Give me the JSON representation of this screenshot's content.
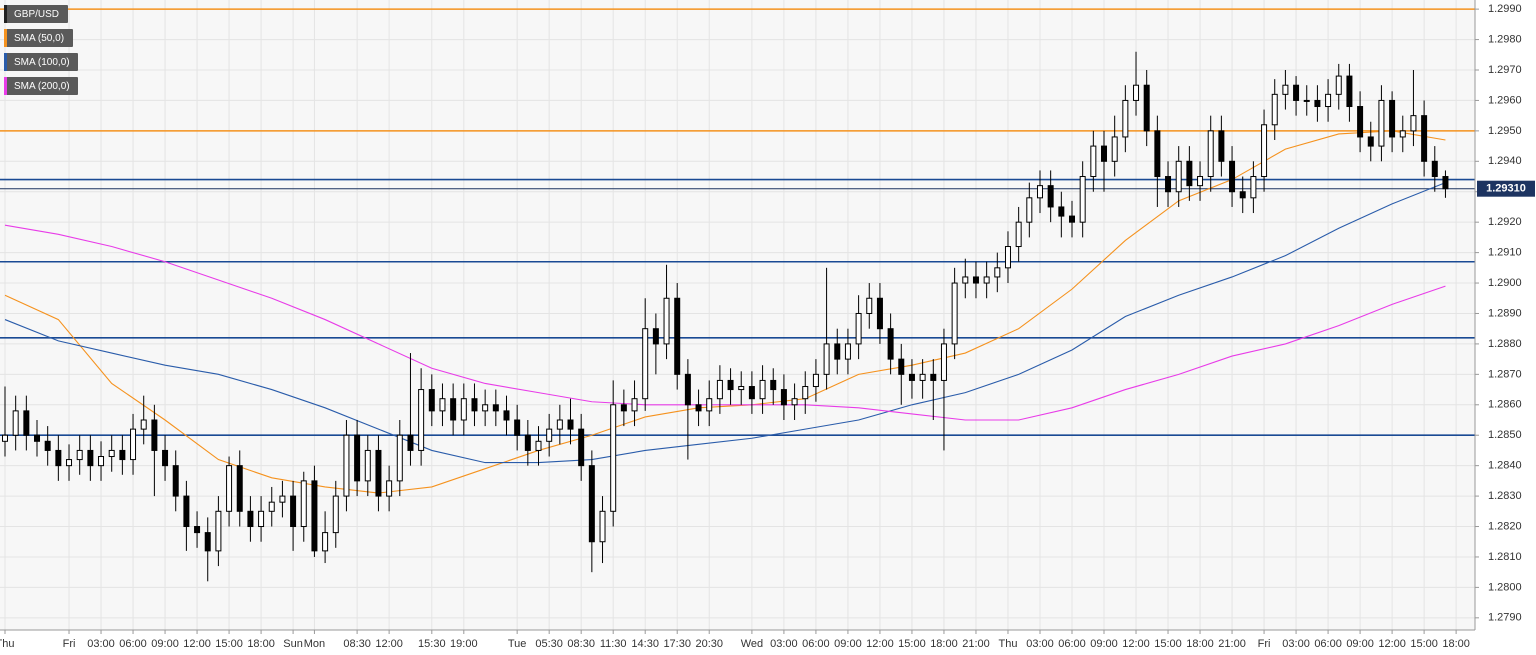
{
  "chart_data": {
    "type": "candlestick",
    "symbol": "GBP/USD",
    "categories": [
      "Thu",
      null,
      null,
      null,
      null,
      null,
      "Fri",
      null,
      null,
      "03:00",
      null,
      null,
      "06:00",
      null,
      null,
      "09:00",
      null,
      null,
      "12:00",
      null,
      null,
      "15:00",
      null,
      null,
      "18:00",
      null,
      null,
      "Sun",
      null,
      "Mon",
      null,
      null,
      null,
      "08:30",
      null,
      null,
      "12:00",
      null,
      null,
      null,
      "15:30",
      null,
      null,
      "19:00",
      null,
      null,
      null,
      null,
      "Tue",
      null,
      null,
      "05:30",
      null,
      null,
      "08:30",
      null,
      null,
      "11:30",
      null,
      null,
      "14:30",
      null,
      null,
      "17:30",
      null,
      null,
      "20:30",
      null,
      null,
      null,
      "Wed",
      null,
      null,
      "03:00",
      null,
      null,
      "06:00",
      null,
      null,
      "09:00",
      null,
      null,
      "12:00",
      null,
      null,
      "15:00",
      null,
      null,
      "18:00",
      null,
      null,
      "21:00",
      null,
      null,
      "Thu",
      null,
      null,
      "03:00",
      null,
      null,
      "06:00",
      null,
      null,
      "09:00",
      null,
      null,
      "12:00",
      null,
      null,
      "15:00",
      null,
      null,
      "18:00",
      null,
      null,
      "21:00",
      null,
      null,
      "Fri",
      null,
      null,
      "03:00",
      null,
      null,
      "06:00",
      null,
      null,
      "09:00",
      null,
      null,
      "12:00",
      null,
      null,
      "15:00",
      null,
      null,
      "18:00"
    ],
    "open": [
      1.2848,
      1.285,
      1.2858,
      1.285,
      1.2848,
      1.2845,
      1.284,
      1.2842,
      1.2845,
      1.284,
      1.2843,
      1.2845,
      1.2842,
      1.2852,
      1.2855,
      1.2845,
      1.284,
      1.283,
      1.282,
      1.2818,
      1.2812,
      1.2825,
      1.284,
      1.2825,
      1.282,
      1.2825,
      1.2828,
      1.283,
      1.282,
      1.2835,
      1.2812,
      1.2818,
      1.283,
      1.285,
      1.2835,
      1.2845,
      1.283,
      1.2835,
      1.285,
      1.2845,
      1.2865,
      1.2858,
      1.2862,
      1.2855,
      1.2862,
      1.2858,
      1.286,
      1.2858,
      1.2855,
      1.285,
      1.2845,
      1.2848,
      1.2852,
      1.2855,
      1.2852,
      1.284,
      1.2815,
      1.2825,
      1.286,
      1.2858,
      1.2862,
      1.2885,
      1.288,
      1.2895,
      1.287,
      1.286,
      1.2858,
      1.2862,
      1.2868,
      1.2865,
      1.2866,
      1.2862,
      1.2868,
      1.2865,
      1.286,
      1.2862,
      1.2866,
      1.287,
      1.288,
      1.2875,
      1.288,
      1.289,
      1.2895,
      1.2885,
      1.2875,
      1.287,
      1.2868,
      1.287,
      1.2868,
      1.288,
      1.29,
      1.2902,
      1.29,
      1.2902,
      1.2905,
      1.2912,
      1.292,
      1.2928,
      1.2932,
      1.2925,
      1.2922,
      1.292,
      1.2935,
      1.2945,
      1.294,
      1.2948,
      1.296,
      1.2965,
      1.295,
      1.2935,
      1.293,
      1.294,
      1.2932,
      1.2935,
      1.295,
      1.294,
      1.293,
      1.2928,
      1.2935,
      1.2952,
      1.2962,
      1.2965,
      1.296,
      1.296,
      1.2958,
      1.2962,
      1.2968,
      1.2958,
      1.2948,
      1.2945,
      1.296,
      1.2948,
      1.295,
      1.2955,
      1.294,
      1.2935,
      null
    ],
    "high": [
      1.2866,
      1.2863,
      1.2863,
      1.2855,
      1.2853,
      1.285,
      1.2847,
      1.285,
      1.285,
      1.2848,
      1.285,
      1.285,
      1.2857,
      1.2863,
      1.286,
      1.285,
      1.2845,
      1.2835,
      1.2825,
      1.2823,
      1.283,
      1.2843,
      1.2845,
      1.283,
      1.283,
      1.2833,
      1.2835,
      1.2835,
      1.2838,
      1.284,
      1.2825,
      1.2835,
      1.2855,
      1.2855,
      1.285,
      1.285,
      1.284,
      1.2855,
      1.2877,
      1.2872,
      1.287,
      1.2867,
      1.2867,
      1.2867,
      1.2867,
      1.2865,
      1.2865,
      1.2863,
      1.286,
      1.2855,
      1.2853,
      1.2857,
      1.286,
      1.2862,
      1.2857,
      1.2845,
      1.283,
      1.2868,
      1.2865,
      1.2868,
      1.2895,
      1.289,
      1.2906,
      1.29,
      1.2875,
      1.2865,
      1.2868,
      1.2873,
      1.2872,
      1.2871,
      1.2871,
      1.2873,
      1.2872,
      1.287,
      1.2867,
      1.2871,
      1.2875,
      1.2905,
      1.2885,
      1.2885,
      1.2896,
      1.29,
      1.29,
      1.289,
      1.288,
      1.2875,
      1.2875,
      1.2875,
      1.2885,
      1.2905,
      1.2908,
      1.2907,
      1.2907,
      1.291,
      1.2917,
      1.2925,
      1.2933,
      1.2937,
      1.2937,
      1.293,
      1.2927,
      1.294,
      1.295,
      1.295,
      1.2955,
      1.2965,
      1.2976,
      1.297,
      1.2955,
      1.294,
      1.2945,
      1.2945,
      1.294,
      1.2955,
      1.2955,
      1.2945,
      1.2935,
      1.294,
      1.2957,
      1.2967,
      1.297,
      1.2968,
      1.2965,
      1.2965,
      1.2967,
      1.2972,
      1.2972,
      1.2963,
      1.2953,
      1.2965,
      1.2963,
      1.2955,
      1.297,
      1.296,
      1.2945,
      1.2937,
      null
    ],
    "low": [
      1.2843,
      1.2845,
      1.2845,
      1.2843,
      1.284,
      1.2835,
      1.2835,
      1.2837,
      1.2835,
      1.2835,
      1.2838,
      1.2837,
      1.2837,
      1.2847,
      1.283,
      1.2835,
      1.2825,
      1.2812,
      1.2813,
      1.2802,
      1.2807,
      1.282,
      1.282,
      1.2815,
      1.2815,
      1.282,
      1.2823,
      1.2812,
      1.2815,
      1.281,
      1.2808,
      1.2813,
      1.2825,
      1.283,
      1.283,
      1.2825,
      1.2825,
      1.283,
      1.284,
      1.284,
      1.2853,
      1.2853,
      1.285,
      1.285,
      1.2853,
      1.2853,
      1.2853,
      1.285,
      1.2845,
      1.284,
      1.284,
      1.2843,
      1.2847,
      1.2847,
      1.2835,
      1.2805,
      1.2808,
      1.282,
      1.2853,
      1.2853,
      1.2858,
      1.287,
      1.2875,
      1.2865,
      1.2842,
      1.2853,
      1.2853,
      1.2857,
      1.286,
      1.286,
      1.2857,
      1.2857,
      1.286,
      1.2855,
      1.2855,
      1.2857,
      1.2861,
      1.2865,
      1.287,
      1.287,
      1.2875,
      1.2885,
      1.288,
      1.287,
      1.286,
      1.2862,
      1.2862,
      1.2855,
      1.2845,
      1.2875,
      1.2895,
      1.2895,
      1.2895,
      1.2897,
      1.29,
      1.2907,
      1.2915,
      1.2923,
      1.292,
      1.2915,
      1.2915,
      1.2915,
      1.293,
      1.293,
      1.2935,
      1.2943,
      1.2955,
      1.2945,
      1.2925,
      1.2925,
      1.2925,
      1.2927,
      1.2927,
      1.293,
      1.2935,
      1.2925,
      1.2923,
      1.2923,
      1.293,
      1.2947,
      1.2957,
      1.2955,
      1.2955,
      1.2953,
      1.2953,
      1.2957,
      1.2953,
      1.2943,
      1.294,
      1.294,
      1.2943,
      1.2943,
      1.2945,
      1.2935,
      1.293,
      1.2928,
      null
    ],
    "close": [
      1.285,
      1.2858,
      1.285,
      1.2848,
      1.2845,
      1.284,
      1.2842,
      1.2845,
      1.284,
      1.2843,
      1.2845,
      1.2842,
      1.2852,
      1.2855,
      1.2845,
      1.284,
      1.283,
      1.282,
      1.2818,
      1.2812,
      1.2825,
      1.284,
      1.2825,
      1.282,
      1.2825,
      1.2828,
      1.283,
      1.282,
      1.2835,
      1.2812,
      1.2818,
      1.283,
      1.285,
      1.2835,
      1.2845,
      1.283,
      1.2835,
      1.285,
      1.2845,
      1.2865,
      1.2858,
      1.2862,
      1.2855,
      1.2862,
      1.2858,
      1.286,
      1.2858,
      1.2855,
      1.285,
      1.2845,
      1.2848,
      1.2852,
      1.2855,
      1.2852,
      1.284,
      1.2815,
      1.2825,
      1.286,
      1.2858,
      1.2862,
      1.2885,
      1.288,
      1.2895,
      1.287,
      1.286,
      1.2858,
      1.2862,
      1.2868,
      1.2865,
      1.2866,
      1.2862,
      1.2868,
      1.2865,
      1.286,
      1.2862,
      1.2866,
      1.287,
      1.288,
      1.2875,
      1.288,
      1.289,
      1.2895,
      1.2885,
      1.2875,
      1.287,
      1.2868,
      1.287,
      1.2868,
      1.288,
      1.29,
      1.2902,
      1.29,
      1.2902,
      1.2905,
      1.2912,
      1.292,
      1.2928,
      1.2932,
      1.2925,
      1.2922,
      1.292,
      1.2935,
      1.2945,
      1.294,
      1.2948,
      1.296,
      1.2965,
      1.295,
      1.2935,
      1.293,
      1.294,
      1.2932,
      1.2935,
      1.295,
      1.294,
      1.293,
      1.2928,
      1.2935,
      1.2952,
      1.2962,
      1.2965,
      1.296,
      1.296,
      1.2958,
      1.2962,
      1.2968,
      1.2958,
      1.2948,
      1.2945,
      1.296,
      1.2948,
      1.295,
      1.2955,
      1.294,
      1.2935,
      1.2931,
      null
    ],
    "up_color": "#ffffff",
    "down_color": "#000000",
    "series": [
      {
        "name": "SMA (50,0)",
        "color": "#f5921e",
        "x": [
          0,
          5,
          10,
          15,
          20,
          25,
          30,
          35,
          40,
          45,
          50,
          55,
          60,
          65,
          70,
          75,
          80,
          85,
          90,
          95,
          100,
          105,
          110,
          115,
          120,
          125,
          130,
          135
        ],
        "values": [
          1.2896,
          1.2888,
          1.2867,
          1.2855,
          1.2842,
          1.2836,
          1.2833,
          1.2831,
          1.2833,
          1.2839,
          1.2845,
          1.285,
          1.2856,
          1.2859,
          1.286,
          1.2862,
          1.287,
          1.2873,
          1.2877,
          1.2885,
          1.2898,
          1.2914,
          1.2927,
          1.2934,
          1.2944,
          1.2949,
          1.295,
          1.2947
        ]
      },
      {
        "name": "SMA (100,0)",
        "color": "#2a5caa",
        "x": [
          0,
          5,
          10,
          15,
          20,
          25,
          30,
          35,
          40,
          45,
          50,
          55,
          60,
          65,
          70,
          75,
          80,
          85,
          90,
          95,
          100,
          105,
          110,
          115,
          120,
          125,
          130,
          135
        ],
        "values": [
          1.2888,
          1.2881,
          1.2877,
          1.2873,
          1.287,
          1.2865,
          1.2859,
          1.2852,
          1.2845,
          1.2841,
          1.2841,
          1.2842,
          1.2845,
          1.2847,
          1.2849,
          1.2852,
          1.2855,
          1.286,
          1.2864,
          1.287,
          1.2878,
          1.2889,
          1.2896,
          1.2902,
          1.2909,
          1.2918,
          1.2926,
          1.2933
        ]
      },
      {
        "name": "SMA (200,0)",
        "color": "#e83ce8",
        "x": [
          0,
          5,
          10,
          15,
          20,
          25,
          30,
          35,
          40,
          45,
          50,
          55,
          60,
          65,
          70,
          75,
          80,
          85,
          90,
          95,
          100,
          105,
          110,
          115,
          120,
          125,
          130,
          135
        ],
        "values": [
          1.2919,
          1.2916,
          1.2912,
          1.2907,
          1.2901,
          1.2895,
          1.2888,
          1.288,
          1.2872,
          1.2867,
          1.2864,
          1.2861,
          1.286,
          1.286,
          1.286,
          1.286,
          1.2859,
          1.2857,
          1.2855,
          1.2855,
          1.2859,
          1.2865,
          1.287,
          1.2876,
          1.288,
          1.2886,
          1.2893,
          1.2899
        ]
      }
    ],
    "levels": [
      {
        "value": 1.299,
        "color": "#f5921e"
      },
      {
        "value": 1.295,
        "color": "#f5921e"
      },
      {
        "value": 1.2934,
        "color": "#1a4a94"
      },
      {
        "value": 1.2907,
        "color": "#1a4a94"
      },
      {
        "value": 1.2882,
        "color": "#1a4a94"
      },
      {
        "value": 1.285,
        "color": "#1a4a94"
      }
    ],
    "price_label": {
      "value": 1.2931,
      "label": "1.29310",
      "color": "#1d3461"
    },
    "ylim": [
      1.2786,
      1.2993
    ],
    "yticks": [
      {
        "value": 1.279,
        "label": "1.2790"
      },
      {
        "value": 1.28,
        "label": "1.2800"
      },
      {
        "value": 1.281,
        "label": "1.2810"
      },
      {
        "value": 1.282,
        "label": "1.2820"
      },
      {
        "value": 1.283,
        "label": "1.2830"
      },
      {
        "value": 1.284,
        "label": "1.2840"
      },
      {
        "value": 1.285,
        "label": "1.2850"
      },
      {
        "value": 1.286,
        "label": "1.2860"
      },
      {
        "value": 1.287,
        "label": "1.2870"
      },
      {
        "value": 1.288,
        "label": "1.2880"
      },
      {
        "value": 1.289,
        "label": "1.2890"
      },
      {
        "value": 1.29,
        "label": "1.2900"
      },
      {
        "value": 1.291,
        "label": "1.2910"
      },
      {
        "value": 1.292,
        "label": "1.2920"
      },
      {
        "value": 1.293,
        "label": "1.2930"
      },
      {
        "value": 1.294,
        "label": "1.2940"
      },
      {
        "value": 1.295,
        "label": "1.2950"
      },
      {
        "value": 1.296,
        "label": "1.2960"
      },
      {
        "value": 1.297,
        "label": "1.2970"
      },
      {
        "value": 1.298,
        "label": "1.2980"
      },
      {
        "value": 1.299,
        "label": "1.2990"
      }
    ],
    "grid": true
  }
}
